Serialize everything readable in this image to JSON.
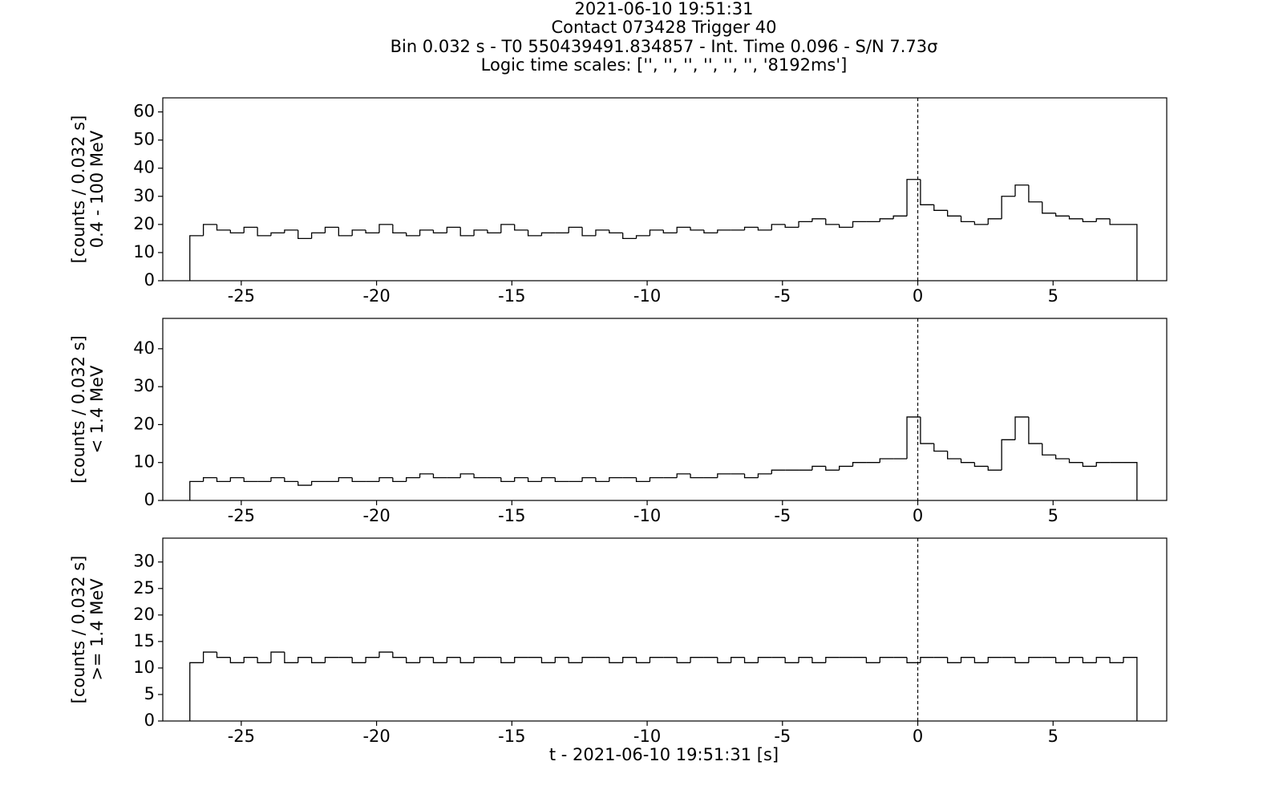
{
  "figure": {
    "title_lines": [
      "2021-06-10 19:51:31",
      "Contact 073428   Trigger 40",
      "Bin 0.032 s -  T0 550439491.834857 - Int. Time 0.096 - S/N 7.73σ",
      "Logic time scales: ['', '', '', '', '', '', '8192ms']"
    ],
    "xlabel": "t - 2021-06-10 19:51:31 [s]"
  },
  "chart_data": [
    {
      "type": "histogram",
      "ylabel_lines": [
        "[counts / 0.032 s]",
        "0.4 - 100 MeV"
      ],
      "color": "#000000",
      "vline": 0,
      "xlim": [
        -27.9,
        9.2
      ],
      "xticks": [
        -25,
        -20,
        -15,
        -10,
        -5,
        0,
        5
      ],
      "ylim": [
        0,
        65
      ],
      "yticks": [
        0,
        10,
        20,
        30,
        40,
        50,
        60
      ],
      "bins": [
        -26.9,
        -26.4,
        -25.9,
        -25.4,
        -24.9,
        -24.4,
        -23.9,
        -23.4,
        -22.9,
        -22.4,
        -21.9,
        -21.4,
        -20.9,
        -20.4,
        -19.9,
        -19.4,
        -18.9,
        -18.4,
        -17.9,
        -17.4,
        -16.9,
        -16.4,
        -15.9,
        -15.4,
        -14.9,
        -14.4,
        -13.9,
        -13.4,
        -12.9,
        -12.4,
        -11.9,
        -11.4,
        -10.9,
        -10.4,
        -9.9,
        -9.4,
        -8.9,
        -8.4,
        -7.9,
        -7.4,
        -6.9,
        -6.4,
        -5.9,
        -5.4,
        -4.9,
        -4.4,
        -3.9,
        -3.4,
        -2.9,
        -2.4,
        -1.9,
        -1.4,
        -0.9,
        -0.4,
        0.1,
        0.6,
        1.1,
        1.6,
        2.1,
        2.6,
        3.1,
        3.6,
        4.1,
        4.6,
        5.1,
        5.6,
        6.1,
        6.6,
        7.1,
        7.6,
        8.1
      ],
      "values": [
        16,
        20,
        18,
        17,
        19,
        16,
        17,
        18,
        15,
        17,
        19,
        16,
        18,
        17,
        20,
        17,
        16,
        18,
        17,
        19,
        16,
        18,
        17,
        20,
        18,
        16,
        17,
        17,
        19,
        16,
        18,
        17,
        15,
        16,
        18,
        17,
        19,
        18,
        17,
        18,
        18,
        19,
        18,
        20,
        19,
        21,
        22,
        20,
        19,
        21,
        21,
        22,
        23,
        36,
        27,
        25,
        23,
        21,
        20,
        22,
        30,
        34,
        28,
        24,
        23,
        22,
        21,
        22,
        20,
        20
      ]
    },
    {
      "type": "histogram",
      "ylabel_lines": [
        "[counts / 0.032 s]",
        "< 1.4 MeV"
      ],
      "color": "#000000",
      "vline": 0,
      "xlim": [
        -27.9,
        9.2
      ],
      "xticks": [
        -25,
        -20,
        -15,
        -10,
        -5,
        0,
        5
      ],
      "ylim": [
        0,
        48
      ],
      "yticks": [
        0,
        10,
        20,
        30,
        40
      ],
      "bins": [
        -26.9,
        -26.4,
        -25.9,
        -25.4,
        -24.9,
        -24.4,
        -23.9,
        -23.4,
        -22.9,
        -22.4,
        -21.9,
        -21.4,
        -20.9,
        -20.4,
        -19.9,
        -19.4,
        -18.9,
        -18.4,
        -17.9,
        -17.4,
        -16.9,
        -16.4,
        -15.9,
        -15.4,
        -14.9,
        -14.4,
        -13.9,
        -13.4,
        -12.9,
        -12.4,
        -11.9,
        -11.4,
        -10.9,
        -10.4,
        -9.9,
        -9.4,
        -8.9,
        -8.4,
        -7.9,
        -7.4,
        -6.9,
        -6.4,
        -5.9,
        -5.4,
        -4.9,
        -4.4,
        -3.9,
        -3.4,
        -2.9,
        -2.4,
        -1.9,
        -1.4,
        -0.9,
        -0.4,
        0.1,
        0.6,
        1.1,
        1.6,
        2.1,
        2.6,
        3.1,
        3.6,
        4.1,
        4.6,
        5.1,
        5.6,
        6.1,
        6.6,
        7.1,
        7.6,
        8.1
      ],
      "values": [
        5,
        6,
        5,
        6,
        5,
        5,
        6,
        5,
        4,
        5,
        5,
        6,
        5,
        5,
        6,
        5,
        6,
        7,
        6,
        6,
        7,
        6,
        6,
        5,
        6,
        5,
        6,
        5,
        5,
        6,
        5,
        6,
        6,
        5,
        6,
        6,
        7,
        6,
        6,
        7,
        7,
        6,
        7,
        8,
        8,
        8,
        9,
        8,
        9,
        10,
        10,
        11,
        11,
        22,
        15,
        13,
        11,
        10,
        9,
        8,
        16,
        22,
        15,
        12,
        11,
        10,
        9,
        10,
        10,
        10
      ]
    },
    {
      "type": "histogram",
      "ylabel_lines": [
        "[counts / 0.032 s]",
        ">= 1.4 MeV"
      ],
      "color": "#000000",
      "vline": 0,
      "xlim": [
        -27.9,
        9.2
      ],
      "xticks": [
        -25,
        -20,
        -15,
        -10,
        -5,
        0,
        5
      ],
      "ylim": [
        0,
        34.5
      ],
      "yticks": [
        0,
        5,
        10,
        15,
        20,
        25,
        30
      ],
      "bins": [
        -26.9,
        -26.4,
        -25.9,
        -25.4,
        -24.9,
        -24.4,
        -23.9,
        -23.4,
        -22.9,
        -22.4,
        -21.9,
        -21.4,
        -20.9,
        -20.4,
        -19.9,
        -19.4,
        -18.9,
        -18.4,
        -17.9,
        -17.4,
        -16.9,
        -16.4,
        -15.9,
        -15.4,
        -14.9,
        -14.4,
        -13.9,
        -13.4,
        -12.9,
        -12.4,
        -11.9,
        -11.4,
        -10.9,
        -10.4,
        -9.9,
        -9.4,
        -8.9,
        -8.4,
        -7.9,
        -7.4,
        -6.9,
        -6.4,
        -5.9,
        -5.4,
        -4.9,
        -4.4,
        -3.9,
        -3.4,
        -2.9,
        -2.4,
        -1.9,
        -1.4,
        -0.9,
        -0.4,
        0.1,
        0.6,
        1.1,
        1.6,
        2.1,
        2.6,
        3.1,
        3.6,
        4.1,
        4.6,
        5.1,
        5.6,
        6.1,
        6.6,
        7.1,
        7.6,
        8.1
      ],
      "values": [
        11,
        13,
        12,
        11,
        12,
        11,
        13,
        11,
        12,
        11,
        12,
        12,
        11,
        12,
        13,
        12,
        11,
        12,
        11,
        12,
        11,
        12,
        12,
        11,
        12,
        12,
        11,
        12,
        11,
        12,
        12,
        11,
        12,
        11,
        12,
        12,
        11,
        12,
        12,
        11,
        12,
        11,
        12,
        12,
        11,
        12,
        11,
        12,
        12,
        12,
        11,
        12,
        12,
        11,
        12,
        12,
        11,
        12,
        11,
        12,
        12,
        11,
        12,
        12,
        11,
        12,
        11,
        12,
        11,
        12
      ]
    }
  ]
}
